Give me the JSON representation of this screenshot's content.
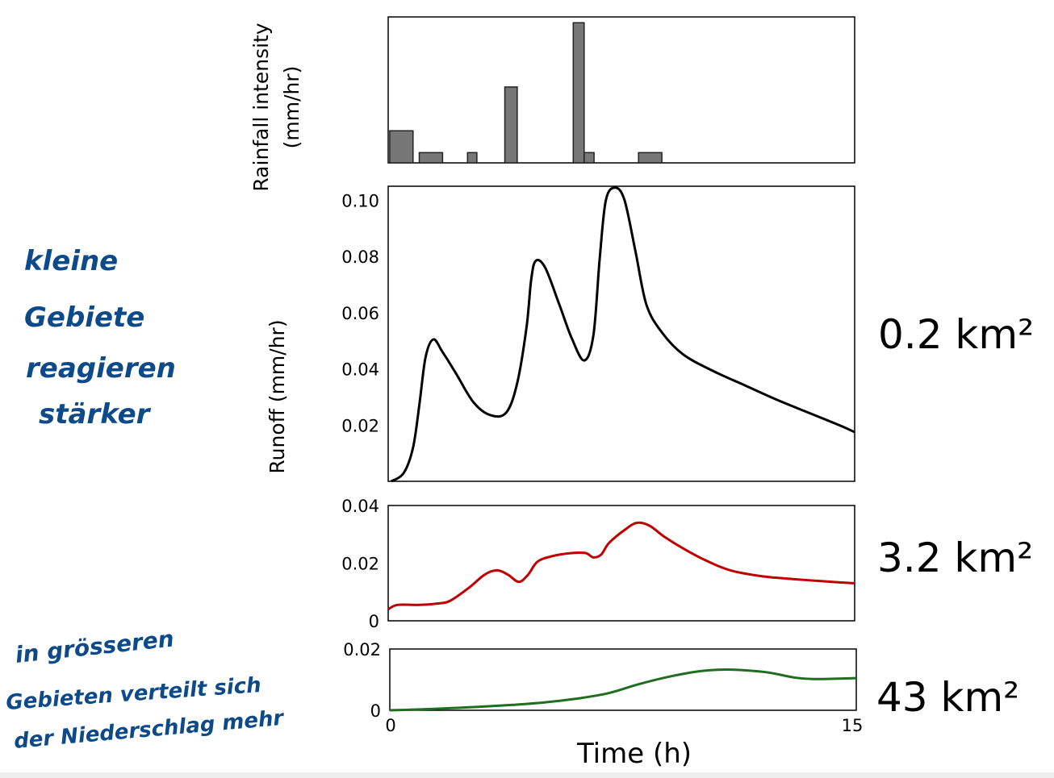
{
  "x_axis": {
    "label": "Time (h)",
    "min": 0,
    "max": 15,
    "tick_labels": [
      "0",
      "15"
    ]
  },
  "annotations": {
    "top": [
      "kleine",
      "Gebiete",
      "reagieren",
      "stärker"
    ],
    "bottom": [
      "in grösseren",
      "Gebieten verteilt sich",
      "der Niederschlag mehr"
    ]
  },
  "chart_data": [
    {
      "type": "bar",
      "ylabel_lines": [
        "Rainfall intensity",
        "(mm/hr)"
      ],
      "bar_color": "#777777",
      "bars": [
        {
          "x0": 0.05,
          "x1": 0.8,
          "value": 0.22
        },
        {
          "x0": 1.0,
          "x1": 1.75,
          "value": 0.07
        },
        {
          "x0": 2.55,
          "x1": 2.85,
          "value": 0.07
        },
        {
          "x0": 3.75,
          "x1": 4.15,
          "value": 0.52
        },
        {
          "x0": 5.95,
          "x1": 6.3,
          "value": 0.96
        },
        {
          "x0": 6.3,
          "x1": 6.62,
          "value": 0.07
        },
        {
          "x0": 8.05,
          "x1": 8.8,
          "value": 0.07
        }
      ],
      "ylim": [
        0,
        1
      ]
    },
    {
      "type": "line",
      "ylabel": "Runoff (mm/hr)",
      "ylim": [
        0,
        0.105
      ],
      "yticks": [
        0.02,
        0.04,
        0.06,
        0.08,
        0.1
      ],
      "ytick_labels": [
        "0.02",
        "0.04",
        "0.06",
        "0.08",
        "0.10"
      ],
      "series": [
        {
          "color": "#000000",
          "area_label": "0.2 km²",
          "points": [
            [
              0.1,
              0.0
            ],
            [
              0.5,
              0.003
            ],
            [
              0.8,
              0.012
            ],
            [
              1.0,
              0.027
            ],
            [
              1.2,
              0.044
            ],
            [
              1.45,
              0.0505
            ],
            [
              1.75,
              0.046
            ],
            [
              2.2,
              0.038
            ],
            [
              2.75,
              0.028
            ],
            [
              3.3,
              0.0235
            ],
            [
              3.8,
              0.0245
            ],
            [
              4.15,
              0.035
            ],
            [
              4.45,
              0.055
            ],
            [
              4.6,
              0.072
            ],
            [
              4.75,
              0.0785
            ],
            [
              5.05,
              0.076
            ],
            [
              5.5,
              0.063
            ],
            [
              5.9,
              0.051
            ],
            [
              6.3,
              0.043
            ],
            [
              6.6,
              0.052
            ],
            [
              6.8,
              0.079
            ],
            [
              7.0,
              0.1
            ],
            [
              7.3,
              0.1045
            ],
            [
              7.6,
              0.1
            ],
            [
              7.95,
              0.082
            ],
            [
              8.3,
              0.063
            ],
            [
              8.8,
              0.053
            ],
            [
              9.5,
              0.045
            ],
            [
              10.5,
              0.039
            ],
            [
              11.5,
              0.034
            ],
            [
              12.5,
              0.029
            ],
            [
              13.5,
              0.0245
            ],
            [
              14.5,
              0.02
            ],
            [
              15.0,
              0.0175
            ]
          ]
        }
      ]
    },
    {
      "type": "line",
      "ylim": [
        0,
        0.04
      ],
      "yticks": [
        0,
        0.02,
        0.04
      ],
      "ytick_labels": [
        "0",
        "0.02",
        "0.04"
      ],
      "series": [
        {
          "color": "#c00000",
          "area_label": "3.2 km²",
          "points": [
            [
              0.0,
              0.004
            ],
            [
              0.3,
              0.0055
            ],
            [
              1.0,
              0.0055
            ],
            [
              1.6,
              0.006
            ],
            [
              2.0,
              0.007
            ],
            [
              2.6,
              0.0115
            ],
            [
              3.1,
              0.016
            ],
            [
              3.5,
              0.0175
            ],
            [
              3.85,
              0.016
            ],
            [
              4.2,
              0.0135
            ],
            [
              4.5,
              0.016
            ],
            [
              4.8,
              0.0205
            ],
            [
              5.3,
              0.0225
            ],
            [
              5.9,
              0.0235
            ],
            [
              6.35,
              0.0235
            ],
            [
              6.6,
              0.022
            ],
            [
              6.85,
              0.023
            ],
            [
              7.1,
              0.027
            ],
            [
              7.6,
              0.0315
            ],
            [
              8.0,
              0.034
            ],
            [
              8.4,
              0.033
            ],
            [
              8.9,
              0.029
            ],
            [
              9.5,
              0.025
            ],
            [
              10.2,
              0.021
            ],
            [
              11.0,
              0.0175
            ],
            [
              12.0,
              0.0155
            ],
            [
              13.0,
              0.0145
            ],
            [
              14.0,
              0.0137
            ],
            [
              15.0,
              0.013
            ]
          ]
        }
      ]
    },
    {
      "type": "line",
      "ylim": [
        0,
        0.02
      ],
      "yticks": [
        0,
        0.02
      ],
      "ytick_labels": [
        "0",
        "0.02"
      ],
      "series": [
        {
          "color": "#1f6e1f",
          "area_label": "43 km²",
          "points": [
            [
              0.0,
              0.0
            ],
            [
              1.0,
              0.0003
            ],
            [
              2.0,
              0.0007
            ],
            [
              3.0,
              0.0012
            ],
            [
              4.0,
              0.0018
            ],
            [
              5.0,
              0.0026
            ],
            [
              6.0,
              0.0038
            ],
            [
              7.0,
              0.0055
            ],
            [
              8.0,
              0.0085
            ],
            [
              9.0,
              0.011
            ],
            [
              10.0,
              0.0128
            ],
            [
              10.8,
              0.0133
            ],
            [
              11.5,
              0.013
            ],
            [
              12.2,
              0.0123
            ],
            [
              13.0,
              0.0107
            ],
            [
              13.6,
              0.0102
            ],
            [
              14.3,
              0.0103
            ],
            [
              15.0,
              0.0105
            ]
          ]
        }
      ]
    }
  ]
}
